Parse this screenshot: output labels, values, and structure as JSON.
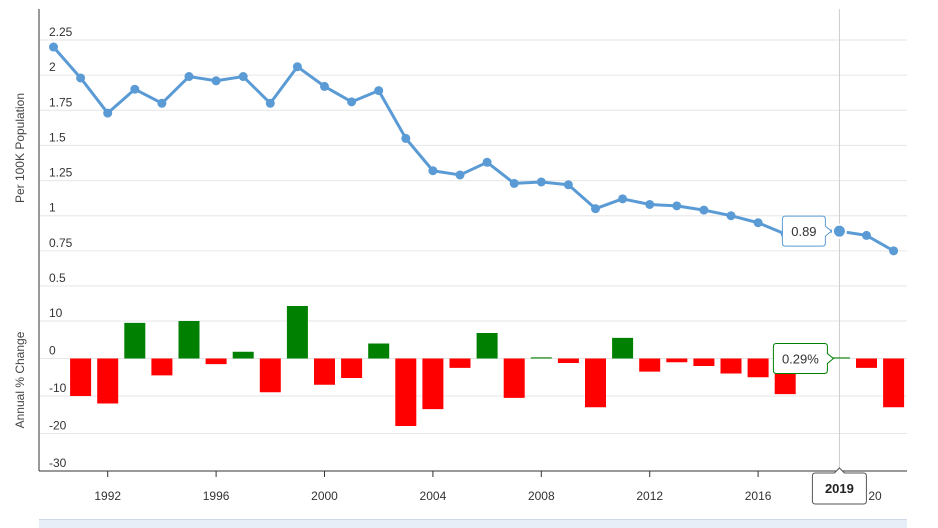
{
  "chart_data": [
    {
      "type": "line",
      "ylabel": "Per 100K Population",
      "ylim": [
        0.5,
        2.25
      ],
      "yticks": [
        "2.25",
        "2",
        "1.75",
        "1.5",
        "1.25",
        "1",
        "0.75",
        "0.5"
      ],
      "grid": true,
      "color": "#5b9bd5",
      "x": [
        1990,
        1991,
        1992,
        1993,
        1994,
        1995,
        1996,
        1997,
        1998,
        1999,
        2000,
        2001,
        2002,
        2003,
        2004,
        2005,
        2006,
        2007,
        2008,
        2009,
        2010,
        2011,
        2012,
        2013,
        2014,
        2015,
        2016,
        2017,
        2018,
        2019,
        2020,
        2021
      ],
      "values": [
        2.2,
        1.98,
        1.73,
        1.9,
        1.8,
        1.99,
        1.96,
        1.99,
        1.8,
        2.06,
        1.92,
        1.81,
        1.89,
        1.55,
        1.32,
        1.29,
        1.38,
        1.23,
        1.24,
        1.22,
        1.05,
        1.12,
        1.08,
        1.07,
        1.04,
        1.0,
        0.95,
        0.87,
        0.89,
        0.89,
        0.86,
        0.75
      ]
    },
    {
      "type": "bar",
      "ylabel": "Annual % Change",
      "ylim": [
        -30,
        10
      ],
      "yticks": [
        "10",
        "0",
        "-10",
        "-20",
        "-30"
      ],
      "grid": true,
      "positive_color": "#008000",
      "negative_color": "#ff0000",
      "x": [
        1991,
        1992,
        1993,
        1994,
        1995,
        1996,
        1997,
        1998,
        1999,
        2000,
        2001,
        2002,
        2003,
        2004,
        2005,
        2006,
        2007,
        2008,
        2009,
        2010,
        2011,
        2012,
        2013,
        2014,
        2015,
        2016,
        2017,
        2018,
        2019,
        2020,
        2021
      ],
      "values": [
        -10,
        -12,
        9.5,
        -4.5,
        10,
        -1.5,
        1.8,
        -9,
        14,
        -7,
        -5.2,
        4,
        -18,
        -13.5,
        -2.5,
        6.8,
        -10.5,
        0.3,
        -1.2,
        -13,
        5.5,
        -3.5,
        -1,
        -2,
        -4,
        -5,
        -9.5,
        0.3,
        0.29,
        -2.5,
        -13
      ]
    }
  ],
  "xaxis": {
    "ticks": [
      "1992",
      "1996",
      "2000",
      "2004",
      "2008",
      "2012",
      "2016"
    ],
    "partial_tick": "20"
  },
  "tooltip": {
    "year": 2019,
    "year_label": "2019",
    "line_label": "0.89",
    "bar_label": "0.29%"
  }
}
